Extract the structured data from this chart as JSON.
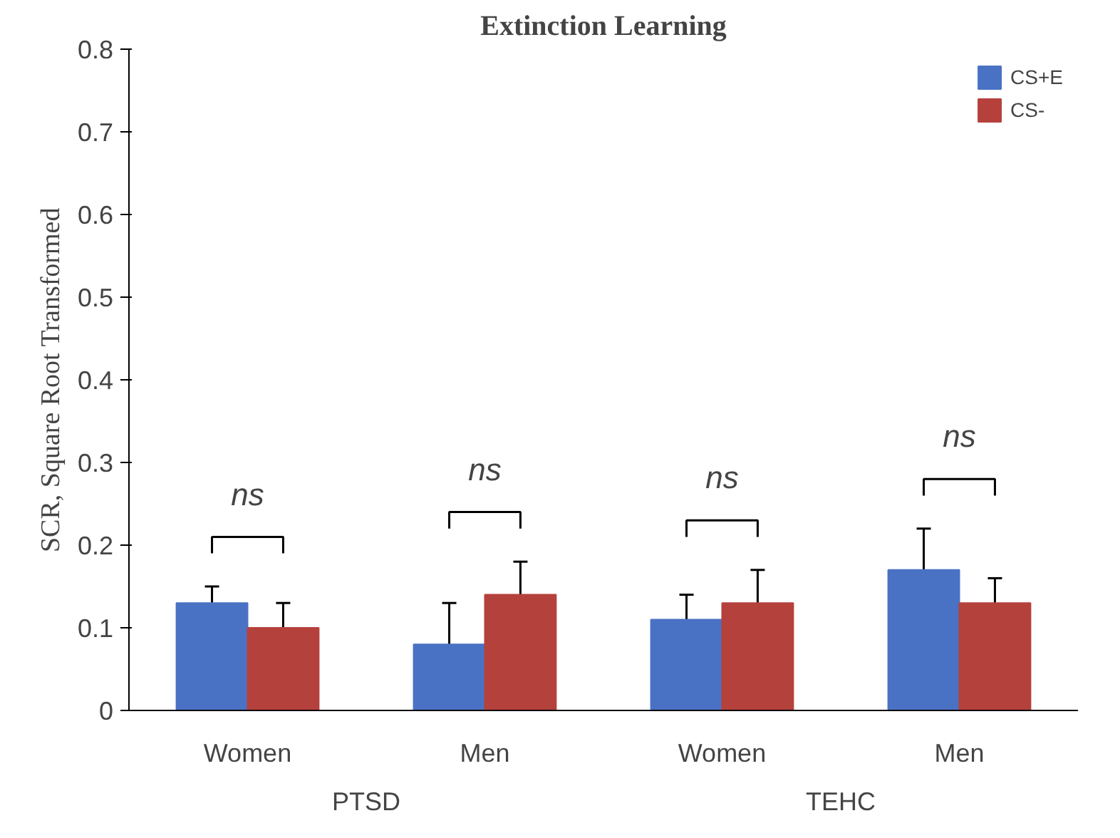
{
  "chart_data": {
    "type": "bar",
    "title": "Extinction Learning",
    "ylabel": "SCR, Square Root Transformed",
    "categories": [
      "Women",
      "Men",
      "Women",
      "Men"
    ],
    "series": [
      {
        "name": "CS+E",
        "color": "#4a72c4",
        "values": [
          0.13,
          0.08,
          0.11,
          0.17
        ],
        "errors": [
          0.02,
          0.05,
          0.03,
          0.05
        ]
      },
      {
        "name": "CS-",
        "color": "#b5413c",
        "values": [
          0.1,
          0.14,
          0.13,
          0.13
        ],
        "errors": [
          0.03,
          0.04,
          0.04,
          0.03
        ]
      }
    ],
    "ylim": [
      0,
      0.8
    ],
    "yticks": [
      0,
      0.1,
      0.2,
      0.3,
      0.4,
      0.5,
      0.6,
      0.7,
      0.8
    ],
    "annotations": [
      "ns",
      "ns",
      "ns",
      "ns",
      "PTSD",
      "TEHC"
    ],
    "legend": "top right",
    "grid": false
  }
}
